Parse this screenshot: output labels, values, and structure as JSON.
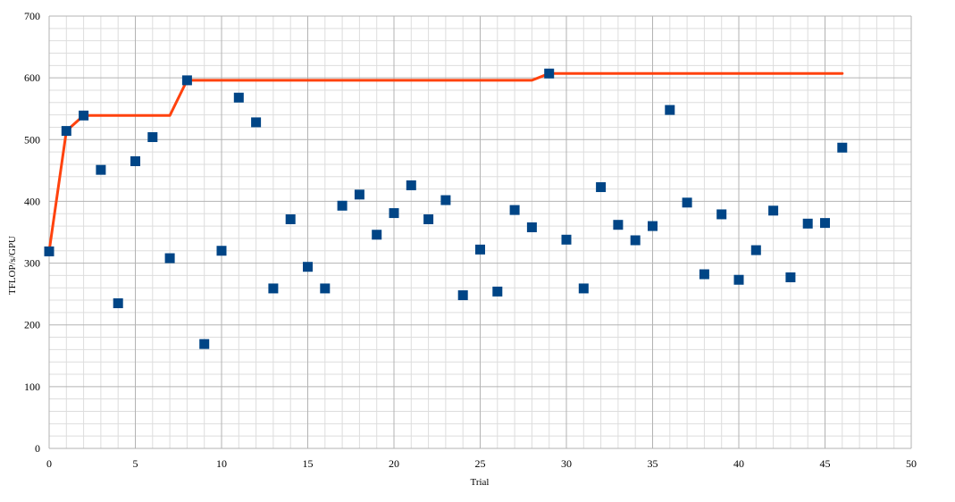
{
  "chart_data": {
    "type": "scatter",
    "title": "",
    "xlabel": "Trial",
    "ylabel": "TFLOP/s/GPU",
    "xlim": [
      0,
      50
    ],
    "ylim": [
      0,
      700
    ],
    "x_ticks": [
      0,
      5,
      10,
      15,
      20,
      25,
      30,
      35,
      40,
      45,
      50
    ],
    "y_ticks": [
      0,
      100,
      200,
      300,
      400,
      500,
      600,
      700
    ],
    "grid": "major and minor",
    "legend": "none",
    "series": [
      {
        "type": "scatter",
        "marker": "square",
        "color": "#004586",
        "points": [
          [
            0,
            319
          ],
          [
            1,
            514
          ],
          [
            2,
            539
          ],
          [
            3,
            451
          ],
          [
            4,
            235
          ],
          [
            5,
            465
          ],
          [
            6,
            504
          ],
          [
            7,
            308
          ],
          [
            8,
            596
          ],
          [
            9,
            169
          ],
          [
            10,
            320
          ],
          [
            11,
            568
          ],
          [
            12,
            528
          ],
          [
            13,
            259
          ],
          [
            14,
            371
          ],
          [
            15,
            294
          ],
          [
            16,
            259
          ],
          [
            17,
            393
          ],
          [
            18,
            411
          ],
          [
            19,
            346
          ],
          [
            20,
            381
          ],
          [
            21,
            426
          ],
          [
            22,
            371
          ],
          [
            23,
            402
          ],
          [
            24,
            248
          ],
          [
            25,
            322
          ],
          [
            26,
            254
          ],
          [
            27,
            386
          ],
          [
            28,
            358
          ],
          [
            29,
            607
          ],
          [
            30,
            338
          ],
          [
            31,
            259
          ],
          [
            32,
            423
          ],
          [
            33,
            362
          ],
          [
            34,
            337
          ],
          [
            35,
            360
          ],
          [
            36,
            548
          ],
          [
            37,
            398
          ],
          [
            38,
            282
          ],
          [
            39,
            379
          ],
          [
            40,
            273
          ],
          [
            41,
            321
          ],
          [
            42,
            385
          ],
          [
            43,
            277
          ],
          [
            44,
            364
          ],
          [
            45,
            365
          ],
          [
            46,
            487
          ]
        ]
      },
      {
        "type": "line",
        "color": "#ff420e",
        "points": [
          [
            0,
            319
          ],
          [
            1,
            514
          ],
          [
            2,
            539
          ],
          [
            7,
            539
          ],
          [
            8,
            596
          ],
          [
            28,
            596
          ],
          [
            29,
            607
          ],
          [
            46,
            607
          ]
        ]
      }
    ]
  }
}
